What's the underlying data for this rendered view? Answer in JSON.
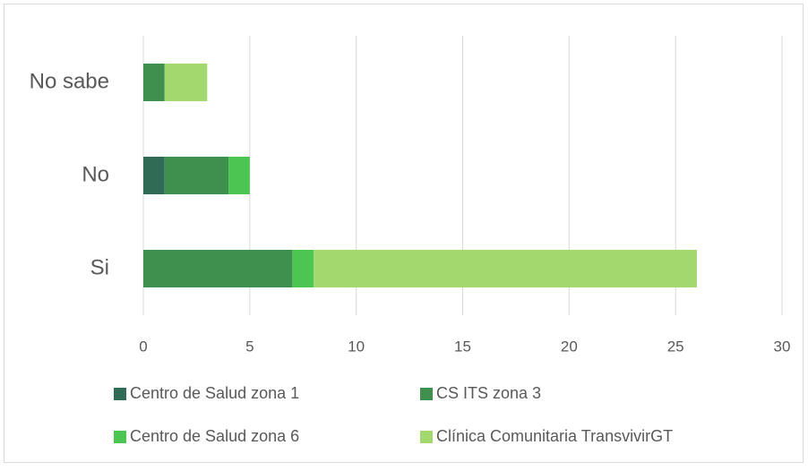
{
  "chart_data": {
    "type": "stacked-bar-horizontal",
    "categories": [
      "Si",
      "No",
      "No sabe"
    ],
    "series": [
      {
        "name": "Centro de Salud zona 1",
        "color": "#2f6b55",
        "values": [
          0,
          1,
          0
        ]
      },
      {
        "name": "CS ITS zona 3",
        "color": "#3f8f4f",
        "values": [
          7,
          3,
          1
        ]
      },
      {
        "name": "Centro de Salud zona 6",
        "color": "#4cc553",
        "values": [
          1,
          1,
          0
        ]
      },
      {
        "name": "Clínica Comunitaria TransvivirGT",
        "color": "#a3d86f",
        "values": [
          18,
          0,
          2
        ]
      }
    ],
    "xlim": [
      0,
      30
    ],
    "xticks": [
      0,
      5,
      10,
      15,
      20,
      25,
      30
    ],
    "grid": true,
    "legend": "bottom"
  }
}
